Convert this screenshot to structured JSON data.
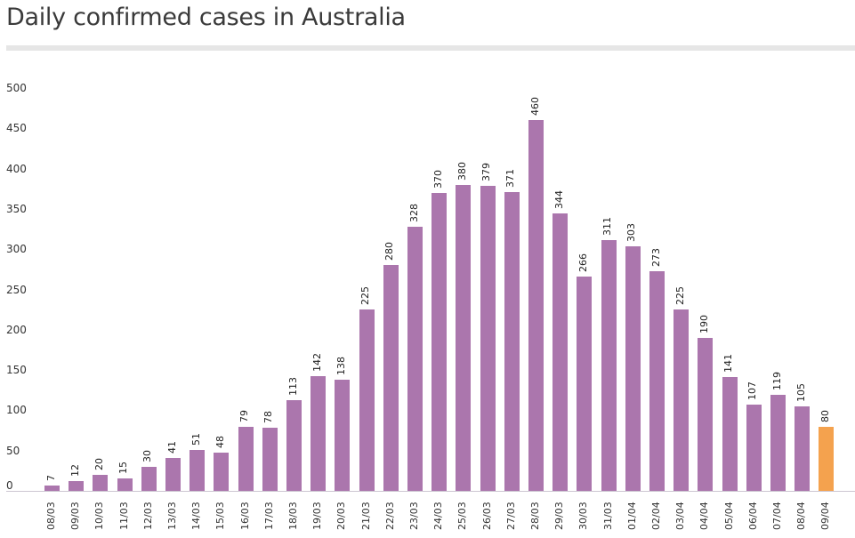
{
  "header": {
    "title": "Daily confirmed cases in Australia"
  },
  "colors": {
    "bar": "#ab76ad",
    "highlight": "#f4a24e",
    "divider": "#e6e6e6"
  },
  "chart_data": {
    "type": "bar",
    "title": "Daily confirmed cases in Australia",
    "xlabel": "",
    "ylabel": "",
    "ylim": [
      0,
      500
    ],
    "yticks": [
      0,
      50,
      100,
      150,
      200,
      250,
      300,
      350,
      400,
      450,
      500
    ],
    "grid": false,
    "legend": null,
    "categories": [
      "08/03",
      "09/03",
      "10/03",
      "11/03",
      "12/03",
      "13/03",
      "14/03",
      "15/03",
      "16/03",
      "17/03",
      "18/03",
      "19/03",
      "20/03",
      "21/03",
      "22/03",
      "23/03",
      "24/03",
      "25/03",
      "26/03",
      "27/03",
      "28/03",
      "29/03",
      "30/03",
      "31/03",
      "01/04",
      "02/04",
      "03/04",
      "04/04",
      "05/04",
      "06/04",
      "07/04",
      "08/04",
      "09/04"
    ],
    "values": [
      7,
      12,
      20,
      15,
      30,
      41,
      51,
      48,
      79,
      78,
      113,
      142,
      138,
      225,
      280,
      328,
      370,
      380,
      379,
      371,
      460,
      344,
      266,
      311,
      303,
      273,
      225,
      190,
      141,
      107,
      119,
      105,
      80
    ],
    "highlighted_index": 32,
    "data_labels": true
  }
}
